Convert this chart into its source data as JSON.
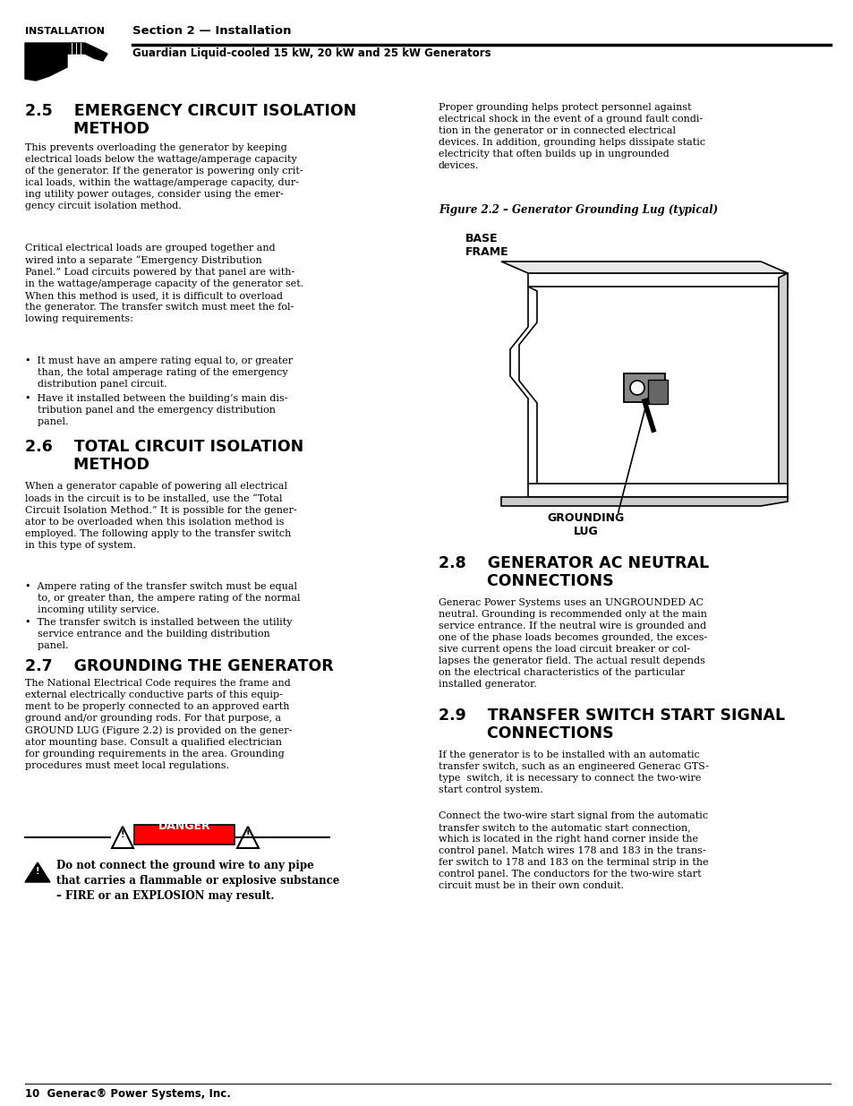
{
  "page_bg": "#ffffff",
  "header_label": "INSTALLATION",
  "header_title": "Section 2 — Installation",
  "header_subtitle": "Guardian Liquid-cooled 15 kW, 20 kW and 25 kW Generators",
  "footer_text": "10  Generac® Power Systems, Inc.",
  "s25_h1": "2.5    EMERGENCY CIRCUIT ISOLATION",
  "s25_h2": "         METHOD",
  "s25_p1": "This prevents overloading the generator by keeping\nelectrical loads below the wattage/amperage capacity\nof the generator. If the generator is powering only crit-\nical loads, within the wattage/amperage capacity, dur-\ning utility power outages, consider using the emer-\ngency circuit isolation method.",
  "s25_p2": "Critical electrical loads are grouped together and\nwired into a separate “Emergency Distribution\nPanel.” Load circuits powered by that panel are with-\nin the wattage/amperage capacity of the generator set.\nWhen this method is used, it is difficult to overload\nthe generator. The transfer switch must meet the fol-\nlowing requirements:",
  "s25_b1": "•  It must have an ampere rating equal to, or greater\n    than, the total amperage rating of the emergency\n    distribution panel circuit.",
  "s25_b2": "•  Have it installed between the building’s main dis-\n    tribution panel and the emergency distribution\n    panel.",
  "s26_h1": "2.6    TOTAL CIRCUIT ISOLATION",
  "s26_h2": "         METHOD",
  "s26_p1": "When a generator capable of powering all electrical\nloads in the circuit is to be installed, use the “Total\nCircuit Isolation Method.” It is possible for the gener-\nator to be overloaded when this isolation method is\nemployed. The following apply to the transfer switch\nin this type of system.",
  "s26_b1": "•  Ampere rating of the transfer switch must be equal\n    to, or greater than, the ampere rating of the normal\n    incoming utility service.",
  "s26_b2": "•  The transfer switch is installed between the utility\n    service entrance and the building distribution\n    panel.",
  "s27_h1": "2.7    GROUNDING THE GENERATOR",
  "s27_p1": "The National Electrical Code requires the frame and\nexternal electrically conductive parts of this equip-\nment to be properly connected to an approved earth\nground and/or grounding rods. For that purpose, a\nGROUND LUG (Figure 2.2) is provided on the gener-\nator mounting base. Consult a qualified electrician\nfor grounding requirements in the area. Grounding\nprocedures must meet local regulations.",
  "danger_warn": "Do not connect the ground wire to any pipe\nthat carries a flammable or explosive substance\n– FIRE or an EXPLOSION may result.",
  "r_p1": "Proper grounding helps protect personnel against\nelectrical shock in the event of a ground fault condi-\ntion in the generator or in connected electrical\ndevices. In addition, grounding helps dissipate static\nelectricity that often builds up in ungrounded\ndevices.",
  "fig_caption": "Figure 2.2 – Generator Grounding Lug (typical)",
  "base_frame_label": "BASE\nFRAME",
  "grounding_lug_label": "GROUNDING\nLUG",
  "s28_h1": "2.8    GENERATOR AC NEUTRAL",
  "s28_h2": "         CONNECTIONS",
  "s28_p1": "Generac Power Systems uses an UNGROUNDED AC\nneutral. Grounding is recommended only at the main\nservice entrance. If the neutral wire is grounded and\none of the phase loads becomes grounded, the exces-\nsive current opens the load circuit breaker or col-\nlapses the generator field. The actual result depends\non the electrical characteristics of the particular\ninstalled generator.",
  "s29_h1": "2.9    TRANSFER SWITCH START SIGNAL",
  "s29_h2": "         CONNECTIONS",
  "s29_p1": "If the generator is to be installed with an automatic\ntransfer switch, such as an engineered Generac GTS-\ntype  switch, it is necessary to connect the two-wire\nstart control system.",
  "s29_p2": "Connect the two-wire start signal from the automatic\ntransfer switch to the automatic start connection,\nwhich is located in the right hand corner inside the\ncontrol panel. Match wires 178 and 183 in the trans-\nfer switch to 178 and 183 on the terminal strip in the\ncontrol panel. The conductors for the two-wire start\ncircuit must be in their own conduit."
}
